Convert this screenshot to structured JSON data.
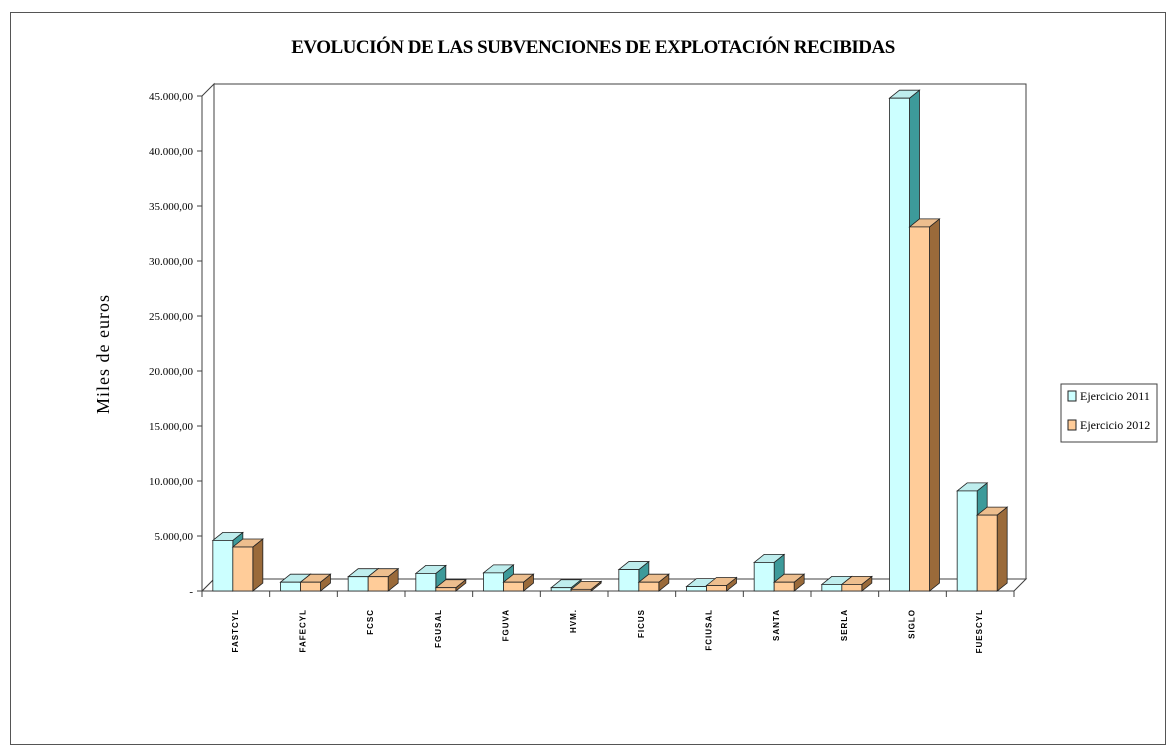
{
  "chart_data": {
    "type": "bar",
    "title": "EVOLUCIÓN DE LAS SUBVENCIONES DE EXPLOTACIÓN RECIBIDAS",
    "ylabel": "Miles de euros",
    "xlabel": "",
    "ylim": [
      0,
      45000
    ],
    "yticks": [
      "-",
      "5.000,00",
      "10.000,00",
      "15.000,00",
      "20.000,00",
      "25.000,00",
      "30.000,00",
      "35.000,00",
      "40.000,00",
      "45.000,00"
    ],
    "categories": [
      "FASTCYL",
      "FAFECYL",
      "FCSC",
      "FGUSAL",
      "FGUVA",
      "HVM.",
      "FICUS",
      "FCIUSAL",
      "SANTA",
      "SERLA",
      "SIGLO",
      "FUESCYL"
    ],
    "series": [
      {
        "name": "Ejercicio 2011",
        "color": "#CCFFFF",
        "values": [
          4600,
          800,
          1300,
          1600,
          1650,
          300,
          1950,
          400,
          2600,
          600,
          44800,
          9100
        ]
      },
      {
        "name": "Ejercicio 2012",
        "color": "#FFCC99",
        "values": [
          4000,
          800,
          1300,
          300,
          800,
          150,
          800,
          500,
          800,
          600,
          33100,
          6900
        ]
      }
    ],
    "grid": false,
    "legend_position": "right"
  }
}
